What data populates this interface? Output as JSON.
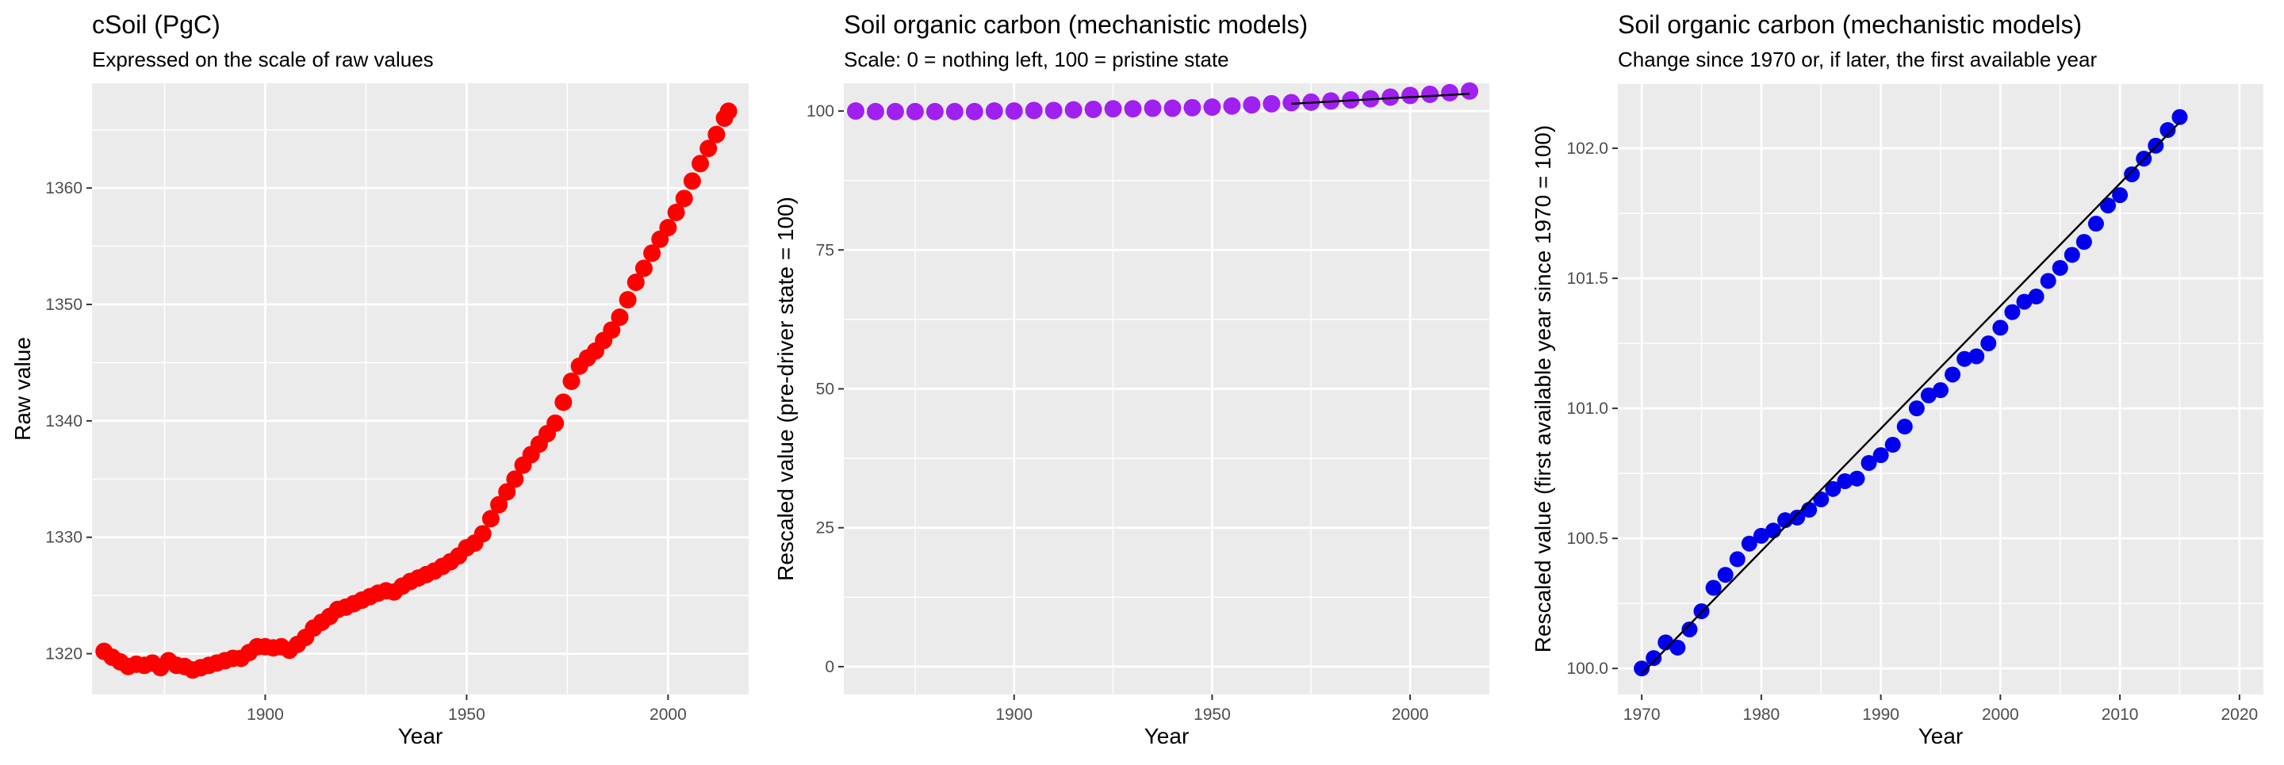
{
  "chart_data": [
    {
      "type": "scatter",
      "title": "cSoil (PgC)",
      "subtitle": "Expressed on the scale of raw values",
      "xlabel": "Year",
      "ylabel": "Raw value",
      "xlim": [
        1857,
        2020
      ],
      "ylim": [
        1316.5,
        1369
      ],
      "xticks": [
        1900,
        1950,
        2000
      ],
      "yticks": [
        1320,
        1330,
        1340,
        1350,
        1360
      ],
      "xtick_labels": [
        "1900",
        "1950",
        "2000"
      ],
      "ytick_labels": [
        "1320",
        "1330",
        "1340",
        "1350",
        "1360"
      ],
      "grid": true,
      "colors": {
        "points": "#ff0000",
        "panel": "#ebebeb",
        "grid": "#ffffff"
      },
      "series": [
        {
          "x": [
            1860,
            1862,
            1864,
            1866,
            1868,
            1870,
            1872,
            1874,
            1876,
            1878,
            1880,
            1882,
            1884,
            1886,
            1888,
            1890,
            1892,
            1894,
            1896,
            1898,
            1900,
            1902,
            1904,
            1906,
            1908,
            1910,
            1912,
            1914,
            1916,
            1918,
            1920,
            1922,
            1924,
            1926,
            1928,
            1930,
            1932,
            1934,
            1936,
            1938,
            1940,
            1942,
            1944,
            1946,
            1948,
            1950,
            1952,
            1954,
            1956,
            1958,
            1960,
            1962,
            1964,
            1966,
            1968,
            1970,
            1972,
            1974,
            1976,
            1978,
            1980,
            1982,
            1984,
            1986,
            1988,
            1990,
            1992,
            1994,
            1996,
            1998,
            2000,
            2002,
            2004,
            2006,
            2008,
            2010,
            2012,
            2014,
            2015
          ],
          "y": [
            1320.2,
            1319.7,
            1319.3,
            1318.9,
            1319.1,
            1319.0,
            1319.2,
            1318.8,
            1319.4,
            1319.0,
            1318.9,
            1318.6,
            1318.8,
            1319.0,
            1319.2,
            1319.4,
            1319.6,
            1319.6,
            1320.1,
            1320.6,
            1320.6,
            1320.5,
            1320.6,
            1320.3,
            1320.8,
            1321.4,
            1322.2,
            1322.7,
            1323.2,
            1323.8,
            1324.0,
            1324.3,
            1324.6,
            1324.9,
            1325.2,
            1325.4,
            1325.3,
            1325.8,
            1326.2,
            1326.5,
            1326.8,
            1327.1,
            1327.5,
            1327.9,
            1328.4,
            1329.1,
            1329.5,
            1330.3,
            1331.6,
            1332.8,
            1333.9,
            1335.0,
            1336.2,
            1337.1,
            1338.0,
            1338.9,
            1339.8,
            1341.6,
            1343.4,
            1344.7,
            1345.4,
            1346.0,
            1346.9,
            1347.8,
            1348.9,
            1350.4,
            1351.9,
            1353.1,
            1354.4,
            1355.6,
            1356.6,
            1357.9,
            1359.1,
            1360.6,
            1362.1,
            1363.4,
            1364.6,
            1366.0,
            1366.6
          ]
        }
      ]
    },
    {
      "type": "scatter",
      "title": "Soil organic carbon (mechanistic models)",
      "subtitle": "Scale: 0 = nothing left, 100 = pristine state",
      "xlabel": "Year",
      "ylabel": "Rescaled value (pre-driver state = 100)",
      "xlim": [
        1857,
        2020
      ],
      "ylim": [
        -5,
        105
      ],
      "xticks": [
        1900,
        1950,
        2000
      ],
      "yticks": [
        0,
        25,
        50,
        75,
        100
      ],
      "xtick_labels": [
        "1900",
        "1950",
        "2000"
      ],
      "ytick_labels": [
        "0",
        "25",
        "50",
        "75",
        "100"
      ],
      "grid": true,
      "colors": {
        "points": "#a020f0",
        "trend_line": "#000000",
        "panel": "#ebebeb",
        "grid": "#ffffff"
      },
      "series": [
        {
          "x": [
            1860,
            1865,
            1870,
            1875,
            1880,
            1885,
            1890,
            1895,
            1900,
            1905,
            1910,
            1915,
            1920,
            1925,
            1930,
            1935,
            1940,
            1945,
            1950,
            1955,
            1960,
            1965,
            1970,
            1975,
            1980,
            1985,
            1990,
            1995,
            2000,
            2005,
            2010,
            2015
          ],
          "y": [
            100.0,
            99.9,
            99.9,
            99.9,
            99.9,
            99.9,
            99.9,
            100.0,
            100.0,
            100.1,
            100.1,
            100.2,
            100.3,
            100.4,
            100.4,
            100.5,
            100.5,
            100.6,
            100.7,
            100.9,
            101.1,
            101.3,
            101.5,
            101.6,
            101.8,
            102.0,
            102.2,
            102.5,
            102.8,
            103.0,
            103.3,
            103.6
          ]
        }
      ],
      "trend": {
        "x": [
          1970,
          2015
        ],
        "y": [
          101.3,
          103.1
        ]
      }
    },
    {
      "type": "scatter",
      "title": "Soil organic carbon (mechanistic models)",
      "subtitle": "Change since 1970 or, if later, the first available year",
      "xlabel": "Year",
      "ylabel": "Rescaled value (first available year since 1970 = 100)",
      "xlim": [
        1968,
        2022
      ],
      "ylim": [
        99.9,
        102.25
      ],
      "xticks": [
        1970,
        1980,
        1990,
        2000,
        2010,
        2020
      ],
      "yticks": [
        100.0,
        100.5,
        101.0,
        101.5,
        102.0
      ],
      "xtick_labels": [
        "1970",
        "1980",
        "1990",
        "2000",
        "2010",
        "2020"
      ],
      "ytick_labels": [
        "100.0",
        "100.5",
        "101.0",
        "101.5",
        "102.0"
      ],
      "grid": true,
      "colors": {
        "points": "#0000ee",
        "trend_line": "#000000",
        "panel": "#ebebeb",
        "grid": "#ffffff"
      },
      "series": [
        {
          "x": [
            1970,
            1971,
            1972,
            1973,
            1974,
            1975,
            1976,
            1977,
            1978,
            1979,
            1980,
            1981,
            1982,
            1983,
            1984,
            1985,
            1986,
            1987,
            1988,
            1989,
            1990,
            1991,
            1992,
            1993,
            1994,
            1995,
            1996,
            1997,
            1998,
            1999,
            2000,
            2001,
            2002,
            2003,
            2004,
            2005,
            2006,
            2007,
            2008,
            2009,
            2010,
            2011,
            2012,
            2013,
            2014,
            2015
          ],
          "y": [
            100.0,
            100.04,
            100.1,
            100.08,
            100.15,
            100.22,
            100.31,
            100.36,
            100.42,
            100.48,
            100.51,
            100.53,
            100.57,
            100.58,
            100.61,
            100.65,
            100.69,
            100.72,
            100.73,
            100.79,
            100.82,
            100.86,
            100.93,
            101.0,
            101.05,
            101.07,
            101.13,
            101.19,
            101.2,
            101.25,
            101.31,
            101.37,
            101.41,
            101.43,
            101.49,
            101.54,
            101.59,
            101.64,
            101.71,
            101.78,
            101.82,
            101.9,
            101.96,
            102.01,
            102.07,
            102.12
          ]
        }
      ],
      "trend": {
        "x": [
          1970,
          2015
        ],
        "y": [
          99.98,
          102.1
        ]
      }
    }
  ]
}
